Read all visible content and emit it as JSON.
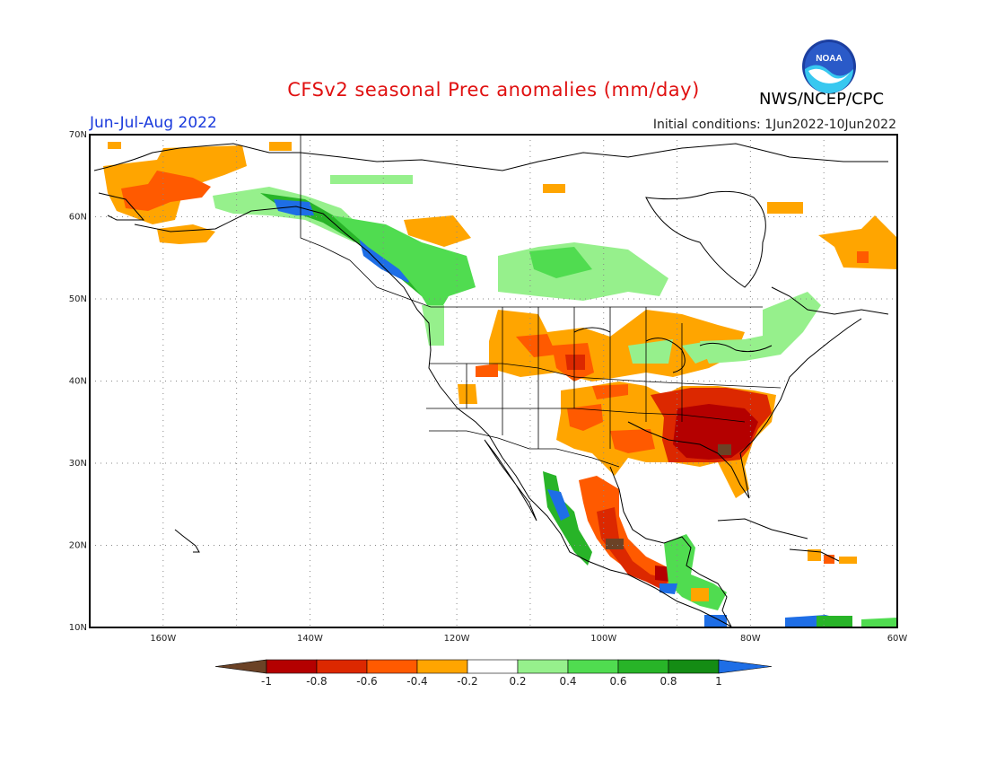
{
  "title": "CFSv2 seasonal Prec anomalies (mm/day)",
  "agency": "NWS/NCEP/CPC",
  "logo_text": "NOAA",
  "season": "Jun-Jul-Aug 2022",
  "initial_conditions": "Initial conditions: 1Jun2022-10Jun2022",
  "axes": {
    "lat_labels": [
      "70N",
      "60N",
      "50N",
      "40N",
      "30N",
      "20N",
      "10N"
    ],
    "lon_labels": [
      "160W",
      "140W",
      "120W",
      "100W",
      "80W",
      "60W"
    ]
  },
  "colorbar": {
    "labels": [
      "-1",
      "-0.8",
      "-0.6",
      "-0.4",
      "-0.2",
      "0.2",
      "0.4",
      "0.6",
      "0.8",
      "1"
    ],
    "colors": {
      "below_min": "#6b4226",
      "bins": [
        "#b40000",
        "#dc2800",
        "#ff5a00",
        "#ffa500",
        "#ffffff",
        "#96f08c",
        "#50dc50",
        "#28b428",
        "#148c14"
      ],
      "above_max": "#1e6ee6"
    }
  },
  "map_data": {
    "extent": {
      "lon": [
        -170,
        -60
      ],
      "lat": [
        10,
        70
      ]
    },
    "grid": "dotted every 10 degrees",
    "anomaly_regions": [
      {
        "region": "western Alaska",
        "color": "#ffa500"
      },
      {
        "region": "western Alaska core",
        "color": "#ff5a00"
      },
      {
        "region": "south Alaska coast",
        "color": "#96f08c"
      },
      {
        "region": "Gulf of Alaska / BC coast",
        "color": "#28b428"
      },
      {
        "region": "Alaska panhandle max",
        "color": "#1e6ee6"
      },
      {
        "region": "northern Rockies",
        "color": "#96f08c"
      },
      {
        "region": "Canadian Prairies",
        "color": "#96f08c"
      },
      {
        "region": "Yukon",
        "color": "#ffa500"
      },
      {
        "region": "central Plains",
        "color": "#ffa500"
      },
      {
        "region": "Kansas/Nebraska",
        "color": "#ff5a00"
      },
      {
        "region": "southern Plains",
        "color": "#ffa500"
      },
      {
        "region": "Southeast US",
        "color": "#dc2800"
      },
      {
        "region": "Deep South core",
        "color": "#b40000"
      },
      {
        "region": "Great Lakes",
        "color": "#96f08c"
      },
      {
        "region": "Labrador",
        "color": "#ffa500"
      },
      {
        "region": "Quebec",
        "color": "#96f08c"
      },
      {
        "region": "Mexico west coast",
        "color": "#28b428"
      },
      {
        "region": "southern Mexico",
        "color": "#b40000"
      },
      {
        "region": "Central America",
        "color": "#50dc50"
      },
      {
        "region": "Caribbean south",
        "color": "#1e6ee6"
      }
    ]
  }
}
